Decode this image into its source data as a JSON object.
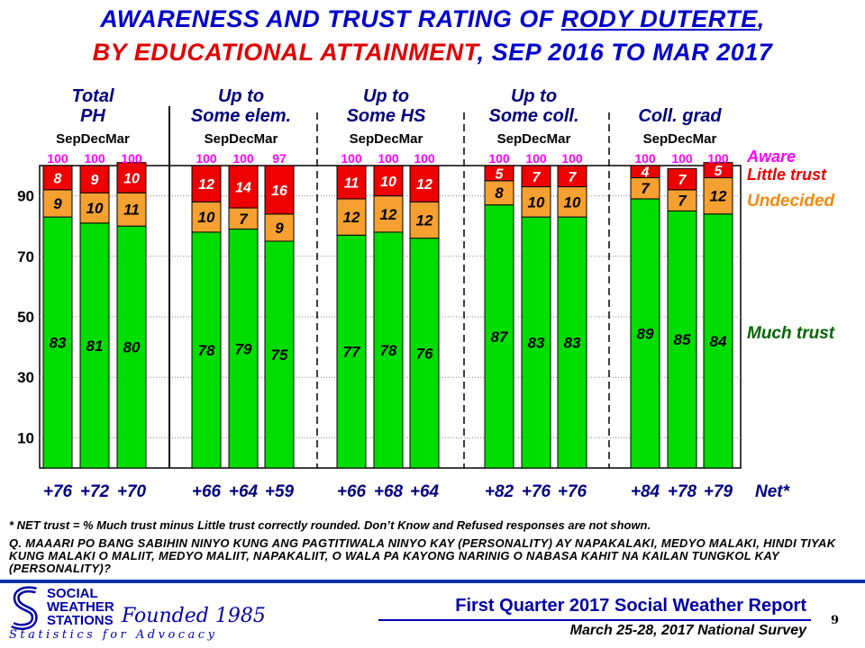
{
  "title": {
    "line1_pre": "AWARENESS AND TRUST RATING OF ",
    "line1_name": "RODY DUTERTE",
    "line1_post": ",",
    "line2_red": "BY EDUCATIONAL ATTAINMENT",
    "line2_post": ",  SEP 2016 TO MAR 2017"
  },
  "colors": {
    "much_trust": "#00dd00",
    "undecided": "#f5a030",
    "little_trust": "#ee0000",
    "aware_text": "#ff00ff",
    "little_trust_text": "#ee0000",
    "undecided_text": "#f08a10",
    "much_trust_text": "#006600",
    "title_blue": "#0000cc"
  },
  "chart_data": {
    "type": "bar",
    "stacked": true,
    "ylim": [
      0,
      100
    ],
    "y_ticks": [
      10,
      30,
      50,
      70,
      90
    ],
    "x_sublabel": "SepDecMar",
    "groups": [
      {
        "label": [
          "Total",
          "PH"
        ],
        "aware": [
          "100",
          "100",
          "100"
        ],
        "much_trust": [
          83,
          81,
          80
        ],
        "undecided": [
          9,
          10,
          11
        ],
        "little_trust": [
          8,
          9,
          10
        ],
        "net": [
          "+76",
          "+72",
          "+70"
        ]
      },
      {
        "label": [
          "Up to",
          "Some elem."
        ],
        "aware": [
          "100",
          "100",
          "97"
        ],
        "much_trust": [
          78,
          79,
          75
        ],
        "undecided": [
          10,
          7,
          9
        ],
        "little_trust": [
          12,
          14,
          16
        ],
        "net": [
          "+66",
          "+64",
          "+59"
        ]
      },
      {
        "label": [
          "Up to",
          "Some HS"
        ],
        "aware": [
          "100",
          "100",
          "100"
        ],
        "much_trust": [
          77,
          78,
          76
        ],
        "undecided": [
          12,
          12,
          12
        ],
        "little_trust": [
          11,
          10,
          12
        ],
        "net": [
          "+66",
          "+68",
          "+64"
        ]
      },
      {
        "label": [
          "Up to",
          "Some coll."
        ],
        "aware": [
          "100",
          "100",
          "100"
        ],
        "much_trust": [
          87,
          83,
          83
        ],
        "undecided": [
          8,
          10,
          10
        ],
        "little_trust": [
          5,
          7,
          7
        ],
        "net": [
          "+82",
          "+76",
          "+76"
        ]
      },
      {
        "label": [
          "Coll. grad",
          ""
        ],
        "aware": [
          "100",
          "100",
          "100"
        ],
        "much_trust": [
          89,
          85,
          84
        ],
        "undecided": [
          7,
          7,
          12
        ],
        "little_trust": [
          4,
          7,
          5
        ],
        "net": [
          "+84",
          "+78",
          "+79"
        ]
      }
    ],
    "legend": {
      "aware": "Aware",
      "little_trust": "Little trust",
      "undecided": "Undecided",
      "much_trust": "Much trust",
      "net": "Net*"
    }
  },
  "footnotes": {
    "net_def": "* NET trust = % Much trust minus Little trust correctly  rounded.  Don’t Know and Refused responses are not shown.",
    "question": "Q. MAAARI PO BANG SABIHIN NINYO KUNG ANG PAGTITIWALA NINYO KAY (PERSONALITY) AY NAPAKALAKI, MEDYO MALAKI, HINDI TIYAK KUNG MALAKI O MALIIT, MEDYO MALIIT, NAPAKALIIT, O WALA PA KAYONG NARINIG O NABASA KAHIT NA KAILAN TUNGKOL KAY (PERSONALITY)?"
  },
  "footer": {
    "logo_lines": [
      "SOCIAL",
      "WEATHER",
      "STATIONS"
    ],
    "founded": "Founded 1985",
    "tagline": "Statistics for Advocacy",
    "report_title": "First Quarter 2017 Social Weather Report",
    "survey": "March 25-28, 2017 National Survey",
    "page_number": "9"
  }
}
